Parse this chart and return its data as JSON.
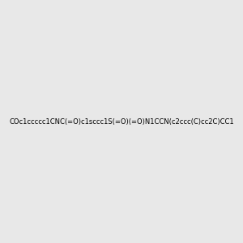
{
  "smiles": "COc1ccccc1CNC(=O)c1sccc1S(=O)(=O)N1CCN(c2ccc(C)cc2C)CC1",
  "title": "",
  "background_color": "#e8e8e8",
  "figsize": [
    3.0,
    3.0
  ],
  "dpi": 100
}
